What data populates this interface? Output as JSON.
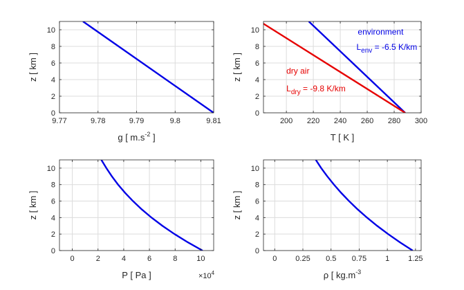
{
  "chart_data": [
    {
      "type": "line",
      "panel": "top-left",
      "xlabel_main": "g  [ m.s",
      "xlabel_sup": "-2",
      "xlabel_end": " ]",
      "ylabel": "z  [ km ]",
      "xlim": [
        9.77,
        9.81
      ],
      "ylim": [
        0,
        11
      ],
      "xticks": [
        9.77,
        9.78,
        9.79,
        9.8,
        9.81
      ],
      "xtick_labels": [
        "9.77",
        "9.78",
        "9.79",
        "9.8",
        "9.81"
      ],
      "yticks": [
        0,
        2,
        4,
        6,
        8,
        10
      ],
      "grid": true,
      "series": [
        {
          "color": "#0000e6",
          "x": [
            9.81,
            9.7761
          ],
          "y": [
            0,
            11
          ]
        }
      ]
    },
    {
      "type": "line",
      "panel": "top-right",
      "xlabel_main": "T  [ K ]",
      "ylabel": "z  [ km ]",
      "xlim": [
        183,
        300
      ],
      "ylim": [
        0,
        11
      ],
      "xticks": [
        200,
        220,
        240,
        260,
        280,
        300
      ],
      "xtick_labels": [
        "200",
        "220",
        "240",
        "260",
        "280",
        "300"
      ],
      "yticks": [
        0,
        2,
        4,
        6,
        8,
        10
      ],
      "grid": true,
      "series": [
        {
          "color": "#0000e6",
          "x": [
            288.15,
            216.65
          ],
          "y": [
            0,
            11
          ]
        },
        {
          "color": "#e60000",
          "x": [
            288.15,
            180.35
          ],
          "y": [
            0,
            11
          ]
        }
      ],
      "annotations": [
        {
          "color": "#0000e6",
          "text": "environment",
          "x": 253,
          "y": 9.4
        },
        {
          "color": "#0000e6",
          "main": "L",
          "sub": "env",
          "rest": " = -6.5 K/km",
          "x": 252,
          "y": 7.6
        },
        {
          "color": "#e60000",
          "text": "dry air",
          "x": 200,
          "y": 4.7
        },
        {
          "color": "#e60000",
          "main": "L",
          "sub": "dry",
          "rest": " = -9.8 K/km",
          "x": 200,
          "y": 2.6
        }
      ]
    },
    {
      "type": "line",
      "panel": "bottom-left",
      "xlabel_main": "P [ Pa ]",
      "ylabel": "z  [ km ]",
      "xlim": [
        -1,
        11
      ],
      "ylim": [
        0,
        11
      ],
      "xticks": [
        0,
        2,
        4,
        6,
        8,
        10
      ],
      "xtick_labels": [
        "0",
        "2",
        "4",
        "6",
        "8",
        "10"
      ],
      "yticks": [
        0,
        2,
        4,
        6,
        8,
        10
      ],
      "x_multiplier_base": "×10",
      "x_multiplier_exp": "4",
      "grid": true,
      "series": [
        {
          "color": "#0000e6",
          "x": [
            10.13,
            8.99,
            7.95,
            7.01,
            6.16,
            5.4,
            4.72,
            4.11,
            3.56,
            3.08,
            2.65,
            2.26
          ],
          "y": [
            0,
            1,
            2,
            3,
            4,
            5,
            6,
            7,
            8,
            9,
            10,
            11
          ]
        }
      ]
    },
    {
      "type": "line",
      "panel": "bottom-right",
      "xlabel_main": "ρ [ kg.m",
      "xlabel_sup": "-3",
      "xlabel_end": "",
      "ylabel": "z  [ km ]",
      "xlim": [
        -0.1,
        1.3
      ],
      "ylim": [
        0,
        11
      ],
      "xticks": [
        0,
        0.25,
        0.5,
        0.75,
        1,
        1.25
      ],
      "xtick_labels": [
        "0",
        "0.25",
        "0.5",
        "0.75",
        "1",
        "1.25"
      ],
      "yticks": [
        0,
        2,
        4,
        6,
        8,
        10
      ],
      "grid": true,
      "series": [
        {
          "color": "#0000e6",
          "x": [
            1.225,
            1.112,
            1.007,
            0.909,
            0.819,
            0.736,
            0.66,
            0.59,
            0.526,
            0.467,
            0.413,
            0.365
          ],
          "y": [
            0,
            1,
            2,
            3,
            4,
            5,
            6,
            7,
            8,
            9,
            10,
            11
          ]
        }
      ]
    }
  ]
}
